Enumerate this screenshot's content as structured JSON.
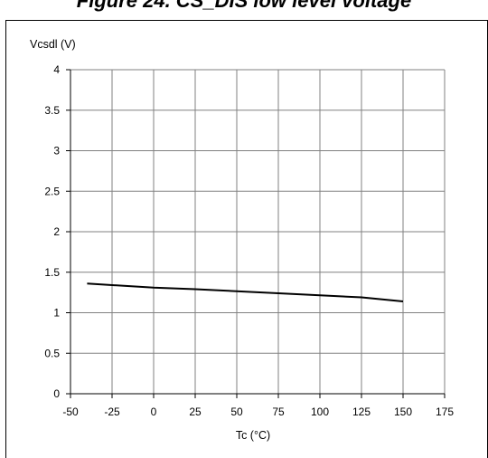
{
  "figure": {
    "title": "Figure 24. CS_DIS low level voltage"
  },
  "chart_data": {
    "type": "line",
    "title": "Figure 24. CS_DIS low level voltage",
    "xlabel": "Tc (°C)",
    "ylabel": "Vcsdl (V)",
    "xlim": [
      -50,
      175
    ],
    "ylim": [
      0,
      4
    ],
    "xticks": [
      -50,
      -25,
      0,
      25,
      50,
      75,
      100,
      125,
      150,
      175
    ],
    "yticks": [
      0,
      0.5,
      1,
      1.5,
      2,
      2.5,
      3,
      3.5,
      4
    ],
    "xtick_labels": [
      "-50",
      "-25",
      "0",
      "25",
      "50",
      "75",
      "100",
      "125",
      "150",
      "175"
    ],
    "ytick_labels": [
      "0",
      "0.5",
      "1",
      "1.5",
      "2",
      "2.5",
      "3",
      "3.5",
      "4"
    ],
    "grid": true,
    "series": [
      {
        "color": "#000000",
        "x": [
          -40,
          0,
          25,
          75,
          125,
          150
        ],
        "y": [
          1.36,
          1.31,
          1.29,
          1.24,
          1.19,
          1.14
        ]
      }
    ]
  }
}
